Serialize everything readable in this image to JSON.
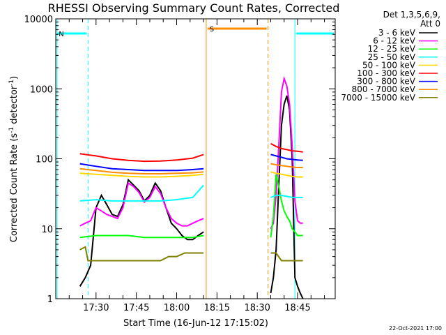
{
  "chart_data": {
    "type": "line",
    "title": "RHESSI Observing Summary Count Rates, Corrected",
    "xlabel": "Start Time (16-Jun-12 17:15:02)",
    "ylabel": "Corrected Count Rate (s⁻¹ detector⁻¹)",
    "ylabel_base": "Corrected Count Rate (s",
    "ylabel_mid": " detector",
    "ylabel_sup": "-1",
    "ylabel_end": ")",
    "yscale": "log",
    "ylim": [
      1,
      10000
    ],
    "xlim_minutes": [
      0,
      104
    ],
    "x_ticks": [
      {
        "minute": 15,
        "label": "17:30"
      },
      {
        "minute": 30,
        "label": "17:45"
      },
      {
        "minute": 45,
        "label": "18:00"
      },
      {
        "minute": 60,
        "label": "18:15"
      },
      {
        "minute": 75,
        "label": "18:30"
      },
      {
        "minute": 90,
        "label": "18:45"
      }
    ],
    "y_ticks": [
      {
        "value": 1,
        "label": "1"
      },
      {
        "value": 10,
        "label": "10"
      },
      {
        "value": 100,
        "label": "100"
      },
      {
        "value": 1000,
        "label": "1000"
      },
      {
        "value": 10000,
        "label": "10000"
      }
    ],
    "detectors": "Det 1,3,5,6,9,",
    "attenuator": "Att 0",
    "series": [
      {
        "name": "3 - 6 keV",
        "color": "#000000",
        "segments": [
          {
            "x": [
              9,
              11,
              13,
              15,
              17,
              19,
              21,
              23,
              25,
              27,
              29,
              31,
              33,
              35,
              37,
              39,
              41,
              43,
              45,
              47,
              49,
              51,
              53,
              55
            ],
            "y": [
              1.5,
              2,
              3,
              20,
              30,
              22,
              16,
              15,
              22,
              50,
              42,
              35,
              25,
              30,
              45,
              35,
              20,
              12,
              10,
              8,
              7,
              7,
              8,
              9
            ]
          },
          {
            "x": [
              80,
              81,
              82,
              83,
              84,
              85,
              86,
              87,
              88,
              89,
              90,
              91,
              92
            ],
            "y": [
              1.2,
              2,
              5,
              40,
              300,
              600,
              800,
              500,
              100,
              2,
              1.5,
              1.2,
              1
            ]
          }
        ]
      },
      {
        "name": "6 - 12 keV",
        "color": "#ff00ff",
        "segments": [
          {
            "x": [
              9,
              11,
              13,
              15,
              17,
              19,
              21,
              23,
              25,
              27,
              29,
              31,
              33,
              35,
              37,
              39,
              41,
              43,
              45,
              47,
              49,
              51,
              53,
              55
            ],
            "y": [
              11,
              12,
              13,
              20,
              18,
              16,
              15,
              14,
              20,
              45,
              40,
              33,
              24,
              28,
              40,
              32,
              20,
              14,
              12,
              11,
              11,
              12,
              13,
              14
            ]
          },
          {
            "x": [
              80,
              81,
              82,
              83,
              84,
              85,
              86,
              87,
              88,
              89,
              90,
              91,
              92
            ],
            "y": [
              10,
              12,
              30,
              150,
              900,
              1400,
              1100,
              600,
              150,
              25,
              13,
              12,
              12
            ]
          }
        ]
      },
      {
        "name": "12 - 25 keV",
        "color": "#00ff00",
        "segments": [
          {
            "x": [
              9,
              15,
              21,
              27,
              33,
              39,
              45,
              51,
              55
            ],
            "y": [
              7.5,
              8,
              8,
              8,
              7.5,
              7.5,
              7.5,
              7.5,
              8
            ]
          },
          {
            "x": [
              80,
              81,
              82,
              83,
              84,
              85,
              86,
              87,
              88,
              89,
              90,
              91,
              92
            ],
            "y": [
              7.5,
              15,
              60,
              40,
              25,
              18,
              15,
              13,
              10,
              9,
              8,
              8,
              8
            ]
          }
        ]
      },
      {
        "name": "25 - 50 keV",
        "color": "#00ffff",
        "segments": [
          {
            "x": [
              9,
              15,
              21,
              27,
              33,
              39,
              45,
              51,
              55
            ],
            "y": [
              25,
              26,
              25,
              25,
              25,
              25,
              26,
              28,
              42
            ]
          },
          {
            "x": [
              80,
              82,
              84,
              86,
              88,
              90,
              92
            ],
            "y": [
              28,
              30,
              30,
              29,
              28,
              28,
              28
            ]
          }
        ]
      },
      {
        "name": "50 - 100 keV",
        "color": "#ffd700",
        "segments": [
          {
            "x": [
              9,
              15,
              21,
              27,
              33,
              39,
              45,
              51,
              55
            ],
            "y": [
              62,
              60,
              58,
              56,
              55,
              55,
              56,
              58,
              60
            ]
          },
          {
            "x": [
              80,
              82,
              84,
              86,
              88,
              90,
              92
            ],
            "y": [
              65,
              62,
              60,
              58,
              56,
              55,
              55
            ]
          }
        ]
      },
      {
        "name": "100 - 300 keV",
        "color": "#ff0000",
        "segments": [
          {
            "x": [
              9,
              15,
              21,
              27,
              33,
              39,
              45,
              51,
              55
            ],
            "y": [
              118,
              110,
              100,
              95,
              92,
              93,
              96,
              102,
              115
            ]
          },
          {
            "x": [
              80,
              82,
              84,
              86,
              88,
              90,
              92
            ],
            "y": [
              165,
              150,
              140,
              135,
              130,
              128,
              125
            ]
          }
        ]
      },
      {
        "name": "300 - 800 keV",
        "color": "#0000ff",
        "segments": [
          {
            "x": [
              9,
              15,
              21,
              27,
              33,
              39,
              45,
              51,
              55
            ],
            "y": [
              85,
              78,
              72,
              70,
              68,
              68,
              68,
              70,
              72
            ]
          },
          {
            "x": [
              80,
              82,
              84,
              86,
              88,
              90,
              92
            ],
            "y": [
              115,
              110,
              105,
              100,
              98,
              96,
              95
            ]
          }
        ]
      },
      {
        "name": "800 - 7000 keV",
        "color": "#ff8c00",
        "segments": [
          {
            "x": [
              9,
              15,
              21,
              27,
              33,
              39,
              45,
              51,
              55
            ],
            "y": [
              72,
              68,
              64,
              62,
              61,
              61,
              62,
              63,
              65
            ]
          },
          {
            "x": [
              80,
              82,
              84,
              86,
              88,
              90,
              92
            ],
            "y": [
              85,
              82,
              80,
              78,
              76,
              75,
              75
            ]
          }
        ]
      },
      {
        "name": "7000 - 15000 keV",
        "color": "#808000",
        "segments": [
          {
            "x": [
              9,
              11,
              12,
              15,
              18,
              21,
              24,
              27,
              30,
              33,
              36,
              39,
              42,
              45,
              48,
              51,
              55
            ],
            "y": [
              5,
              5.5,
              3.5,
              3.5,
              3.5,
              3.5,
              3.5,
              3.5,
              3.5,
              3.5,
              3.5,
              3.5,
              4,
              4,
              4.5,
              4.5,
              4.5
            ]
          },
          {
            "x": [
              80,
              82,
              84,
              86,
              88,
              90,
              92
            ],
            "y": [
              4.5,
              4.5,
              3.5,
              3.5,
              3.5,
              3.5,
              3.5
            ]
          }
        ]
      }
    ],
    "flags": [
      {
        "label": "N",
        "color": "#00ffff",
        "start_minute": 0,
        "end_minute": 12,
        "bar_end_minute": 12
      },
      {
        "label": "",
        "color": "#00ffff",
        "start_minute": 89,
        "end_minute": 104,
        "bar_end_minute": 104
      },
      {
        "label": "S",
        "color": "#ff8c00",
        "start_minute": 56,
        "end_minute": 79,
        "bar_end_minute": 79
      }
    ],
    "footer_date": "22-Oct-2021 17:00"
  }
}
